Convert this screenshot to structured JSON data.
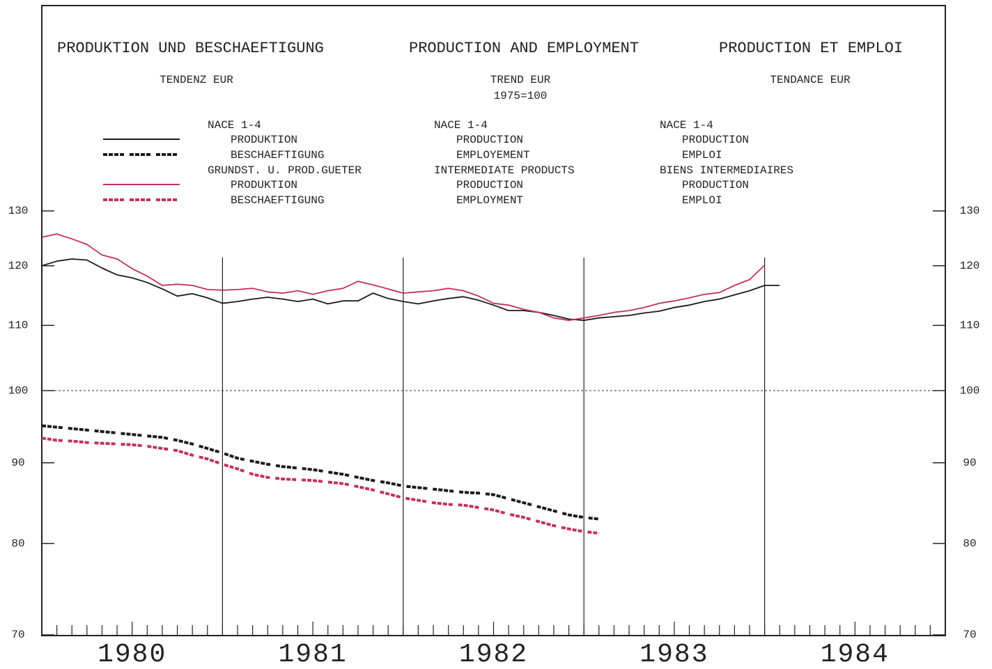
{
  "chart_data": {
    "type": "line",
    "titles": [
      "PRODUKTION UND BESCHAEFTIGUNG",
      "PRODUCTION AND EMPLOYMENT",
      "PRODUCTION ET EMPLOI"
    ],
    "subtitles": [
      "TENDENZ EUR",
      "TREND EUR",
      "TENDANCE EUR"
    ],
    "base_note": "1975=100",
    "groups": [
      {
        "labels": [
          "NACE 1-4",
          "NACE 1-4",
          "NACE 1-4"
        ]
      },
      {
        "labels": [
          "GRUNDST. U. PROD.GUETER",
          "INTERMEDIATE PRODUCTS",
          "BIENS INTERMEDIAIRES"
        ]
      }
    ],
    "log_scale": true,
    "xlim": [
      1980,
      1985
    ],
    "xticks": [
      {
        "value": 1980,
        "label": "1980"
      },
      {
        "value": 1981,
        "label": "1981"
      },
      {
        "value": 1982,
        "label": "1982"
      },
      {
        "value": 1983,
        "label": "1983"
      },
      {
        "value": 1984,
        "label": "1984"
      }
    ],
    "ylim": [
      70,
      130
    ],
    "yticks": [
      70,
      80,
      90,
      100,
      110,
      120,
      130
    ],
    "reference_line": 100,
    "x": [
      1980,
      1980.083,
      1980.167,
      1980.25,
      1980.333,
      1980.417,
      1980.5,
      1980.583,
      1980.667,
      1980.75,
      1980.833,
      1980.917,
      1981,
      1981.083,
      1981.167,
      1981.25,
      1981.333,
      1981.417,
      1981.5,
      1981.583,
      1981.667,
      1981.75,
      1981.833,
      1981.917,
      1982,
      1982.083,
      1982.167,
      1982.25,
      1982.333,
      1982.417,
      1982.5,
      1982.583,
      1982.667,
      1982.75,
      1982.833,
      1982.917,
      1983,
      1983.083,
      1983.167,
      1983.25,
      1983.333,
      1983.417,
      1983.5,
      1983.583,
      1983.667,
      1983.75,
      1983.833,
      1983.917,
      1984,
      1984.083
    ],
    "series": [
      {
        "name": "PRODUKTION",
        "name_en": "PRODUCTION",
        "name_fr": "PRODUCTION",
        "group": 0,
        "color": "#1a1a1a",
        "dashed": false,
        "values": [
          120.0,
          120.8,
          121.2,
          121.0,
          119.6,
          118.4,
          117.9,
          117.1,
          116.0,
          114.8,
          115.2,
          114.5,
          113.6,
          113.9,
          114.3,
          114.6,
          114.3,
          113.9,
          114.3,
          113.5,
          114.0,
          114.0,
          115.3,
          114.4,
          113.9,
          113.5,
          114.0,
          114.4,
          114.7,
          114.1,
          113.3,
          112.4,
          112.4,
          112.1,
          111.6,
          111.0,
          110.8,
          111.2,
          111.4,
          111.6,
          112.0,
          112.3,
          112.9,
          113.3,
          113.9,
          114.3,
          115.0,
          115.7,
          116.6,
          116.6
        ]
      },
      {
        "name": "BESCHAEFTIGUNG",
        "name_en": "EMPLOYEMENT",
        "name_fr": "EMPLOI",
        "group": 0,
        "color": "#1a1a1a",
        "dashed": true,
        "values": [
          95.0,
          94.8,
          94.6,
          94.4,
          94.2,
          94.0,
          93.8,
          93.6,
          93.4,
          93.0,
          92.5,
          91.9,
          91.3,
          90.6,
          90.2,
          89.8,
          89.5,
          89.3,
          89.1,
          88.8,
          88.5,
          88.1,
          87.7,
          87.4,
          87.0,
          86.8,
          86.6,
          86.4,
          86.2,
          86.1,
          85.9,
          85.4,
          84.9,
          84.4,
          83.9,
          83.4,
          83.1,
          82.9,
          null,
          null,
          null,
          null,
          null,
          null,
          null,
          null,
          null,
          null,
          null,
          null
        ]
      },
      {
        "name": "PRODUKTION",
        "name_en": "PRODUCTION",
        "name_fr": "PRODUCTION",
        "group": 1,
        "color": "#c2305e",
        "dashed": false,
        "values": [
          125.1,
          125.7,
          124.8,
          123.8,
          121.9,
          121.2,
          119.5,
          118.2,
          116.6,
          116.8,
          116.6,
          115.9,
          115.8,
          115.9,
          116.1,
          115.5,
          115.3,
          115.7,
          115.1,
          115.7,
          116.1,
          117.3,
          116.7,
          116.0,
          115.3,
          115.5,
          115.7,
          116.1,
          115.7,
          114.8,
          113.6,
          113.3,
          112.6,
          112.1,
          111.2,
          110.8,
          111.2,
          111.6,
          112.1,
          112.4,
          112.9,
          113.6,
          114.0,
          114.5,
          115.1,
          115.4,
          116.6,
          117.6,
          120.1,
          null
        ]
      },
      {
        "name": "BESCHAEFTIGUNG",
        "name_en": "EMPLOYMENT",
        "name_fr": "EMPLOI",
        "group": 1,
        "color": "#c2305e",
        "dashed": true,
        "values": [
          93.3,
          93.0,
          92.9,
          92.7,
          92.6,
          92.5,
          92.4,
          92.2,
          91.9,
          91.6,
          91.0,
          90.5,
          89.8,
          89.2,
          88.5,
          88.1,
          87.9,
          87.8,
          87.7,
          87.5,
          87.3,
          86.9,
          86.5,
          86.0,
          85.5,
          85.2,
          84.9,
          84.7,
          84.6,
          84.3,
          84.0,
          83.5,
          83.1,
          82.6,
          82.1,
          81.7,
          81.4,
          81.2,
          null,
          null,
          null,
          null,
          null,
          null,
          null,
          null,
          null,
          null,
          null,
          null
        ]
      }
    ]
  }
}
